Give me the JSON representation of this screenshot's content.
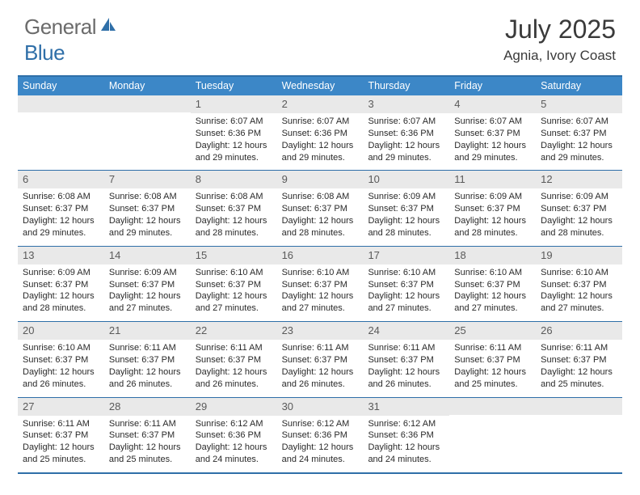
{
  "logo": {
    "text1": "General",
    "text2": "Blue"
  },
  "title": "July 2025",
  "location": "Agnia, Ivory Coast",
  "colors": {
    "headerBg": "#3c87c7",
    "border": "#2f6fa8",
    "dayNumBg": "#e9e9e9",
    "logoGray": "#6b6b6b",
    "logoBlue": "#2f6fa8"
  },
  "dayNames": [
    "Sunday",
    "Monday",
    "Tuesday",
    "Wednesday",
    "Thursday",
    "Friday",
    "Saturday"
  ],
  "weeks": [
    [
      null,
      null,
      {
        "n": "1",
        "sr": "6:07 AM",
        "ss": "6:36 PM",
        "dl": "12 hours and 29 minutes."
      },
      {
        "n": "2",
        "sr": "6:07 AM",
        "ss": "6:36 PM",
        "dl": "12 hours and 29 minutes."
      },
      {
        "n": "3",
        "sr": "6:07 AM",
        "ss": "6:36 PM",
        "dl": "12 hours and 29 minutes."
      },
      {
        "n": "4",
        "sr": "6:07 AM",
        "ss": "6:37 PM",
        "dl": "12 hours and 29 minutes."
      },
      {
        "n": "5",
        "sr": "6:07 AM",
        "ss": "6:37 PM",
        "dl": "12 hours and 29 minutes."
      }
    ],
    [
      {
        "n": "6",
        "sr": "6:08 AM",
        "ss": "6:37 PM",
        "dl": "12 hours and 29 minutes."
      },
      {
        "n": "7",
        "sr": "6:08 AM",
        "ss": "6:37 PM",
        "dl": "12 hours and 29 minutes."
      },
      {
        "n": "8",
        "sr": "6:08 AM",
        "ss": "6:37 PM",
        "dl": "12 hours and 28 minutes."
      },
      {
        "n": "9",
        "sr": "6:08 AM",
        "ss": "6:37 PM",
        "dl": "12 hours and 28 minutes."
      },
      {
        "n": "10",
        "sr": "6:09 AM",
        "ss": "6:37 PM",
        "dl": "12 hours and 28 minutes."
      },
      {
        "n": "11",
        "sr": "6:09 AM",
        "ss": "6:37 PM",
        "dl": "12 hours and 28 minutes."
      },
      {
        "n": "12",
        "sr": "6:09 AM",
        "ss": "6:37 PM",
        "dl": "12 hours and 28 minutes."
      }
    ],
    [
      {
        "n": "13",
        "sr": "6:09 AM",
        "ss": "6:37 PM",
        "dl": "12 hours and 28 minutes."
      },
      {
        "n": "14",
        "sr": "6:09 AM",
        "ss": "6:37 PM",
        "dl": "12 hours and 27 minutes."
      },
      {
        "n": "15",
        "sr": "6:10 AM",
        "ss": "6:37 PM",
        "dl": "12 hours and 27 minutes."
      },
      {
        "n": "16",
        "sr": "6:10 AM",
        "ss": "6:37 PM",
        "dl": "12 hours and 27 minutes."
      },
      {
        "n": "17",
        "sr": "6:10 AM",
        "ss": "6:37 PM",
        "dl": "12 hours and 27 minutes."
      },
      {
        "n": "18",
        "sr": "6:10 AM",
        "ss": "6:37 PM",
        "dl": "12 hours and 27 minutes."
      },
      {
        "n": "19",
        "sr": "6:10 AM",
        "ss": "6:37 PM",
        "dl": "12 hours and 27 minutes."
      }
    ],
    [
      {
        "n": "20",
        "sr": "6:10 AM",
        "ss": "6:37 PM",
        "dl": "12 hours and 26 minutes."
      },
      {
        "n": "21",
        "sr": "6:11 AM",
        "ss": "6:37 PM",
        "dl": "12 hours and 26 minutes."
      },
      {
        "n": "22",
        "sr": "6:11 AM",
        "ss": "6:37 PM",
        "dl": "12 hours and 26 minutes."
      },
      {
        "n": "23",
        "sr": "6:11 AM",
        "ss": "6:37 PM",
        "dl": "12 hours and 26 minutes."
      },
      {
        "n": "24",
        "sr": "6:11 AM",
        "ss": "6:37 PM",
        "dl": "12 hours and 26 minutes."
      },
      {
        "n": "25",
        "sr": "6:11 AM",
        "ss": "6:37 PM",
        "dl": "12 hours and 25 minutes."
      },
      {
        "n": "26",
        "sr": "6:11 AM",
        "ss": "6:37 PM",
        "dl": "12 hours and 25 minutes."
      }
    ],
    [
      {
        "n": "27",
        "sr": "6:11 AM",
        "ss": "6:37 PM",
        "dl": "12 hours and 25 minutes."
      },
      {
        "n": "28",
        "sr": "6:11 AM",
        "ss": "6:37 PM",
        "dl": "12 hours and 25 minutes."
      },
      {
        "n": "29",
        "sr": "6:12 AM",
        "ss": "6:36 PM",
        "dl": "12 hours and 24 minutes."
      },
      {
        "n": "30",
        "sr": "6:12 AM",
        "ss": "6:36 PM",
        "dl": "12 hours and 24 minutes."
      },
      {
        "n": "31",
        "sr": "6:12 AM",
        "ss": "6:36 PM",
        "dl": "12 hours and 24 minutes."
      },
      null,
      null
    ]
  ],
  "labels": {
    "sunrise": "Sunrise:",
    "sunset": "Sunset:",
    "daylight": "Daylight:"
  }
}
